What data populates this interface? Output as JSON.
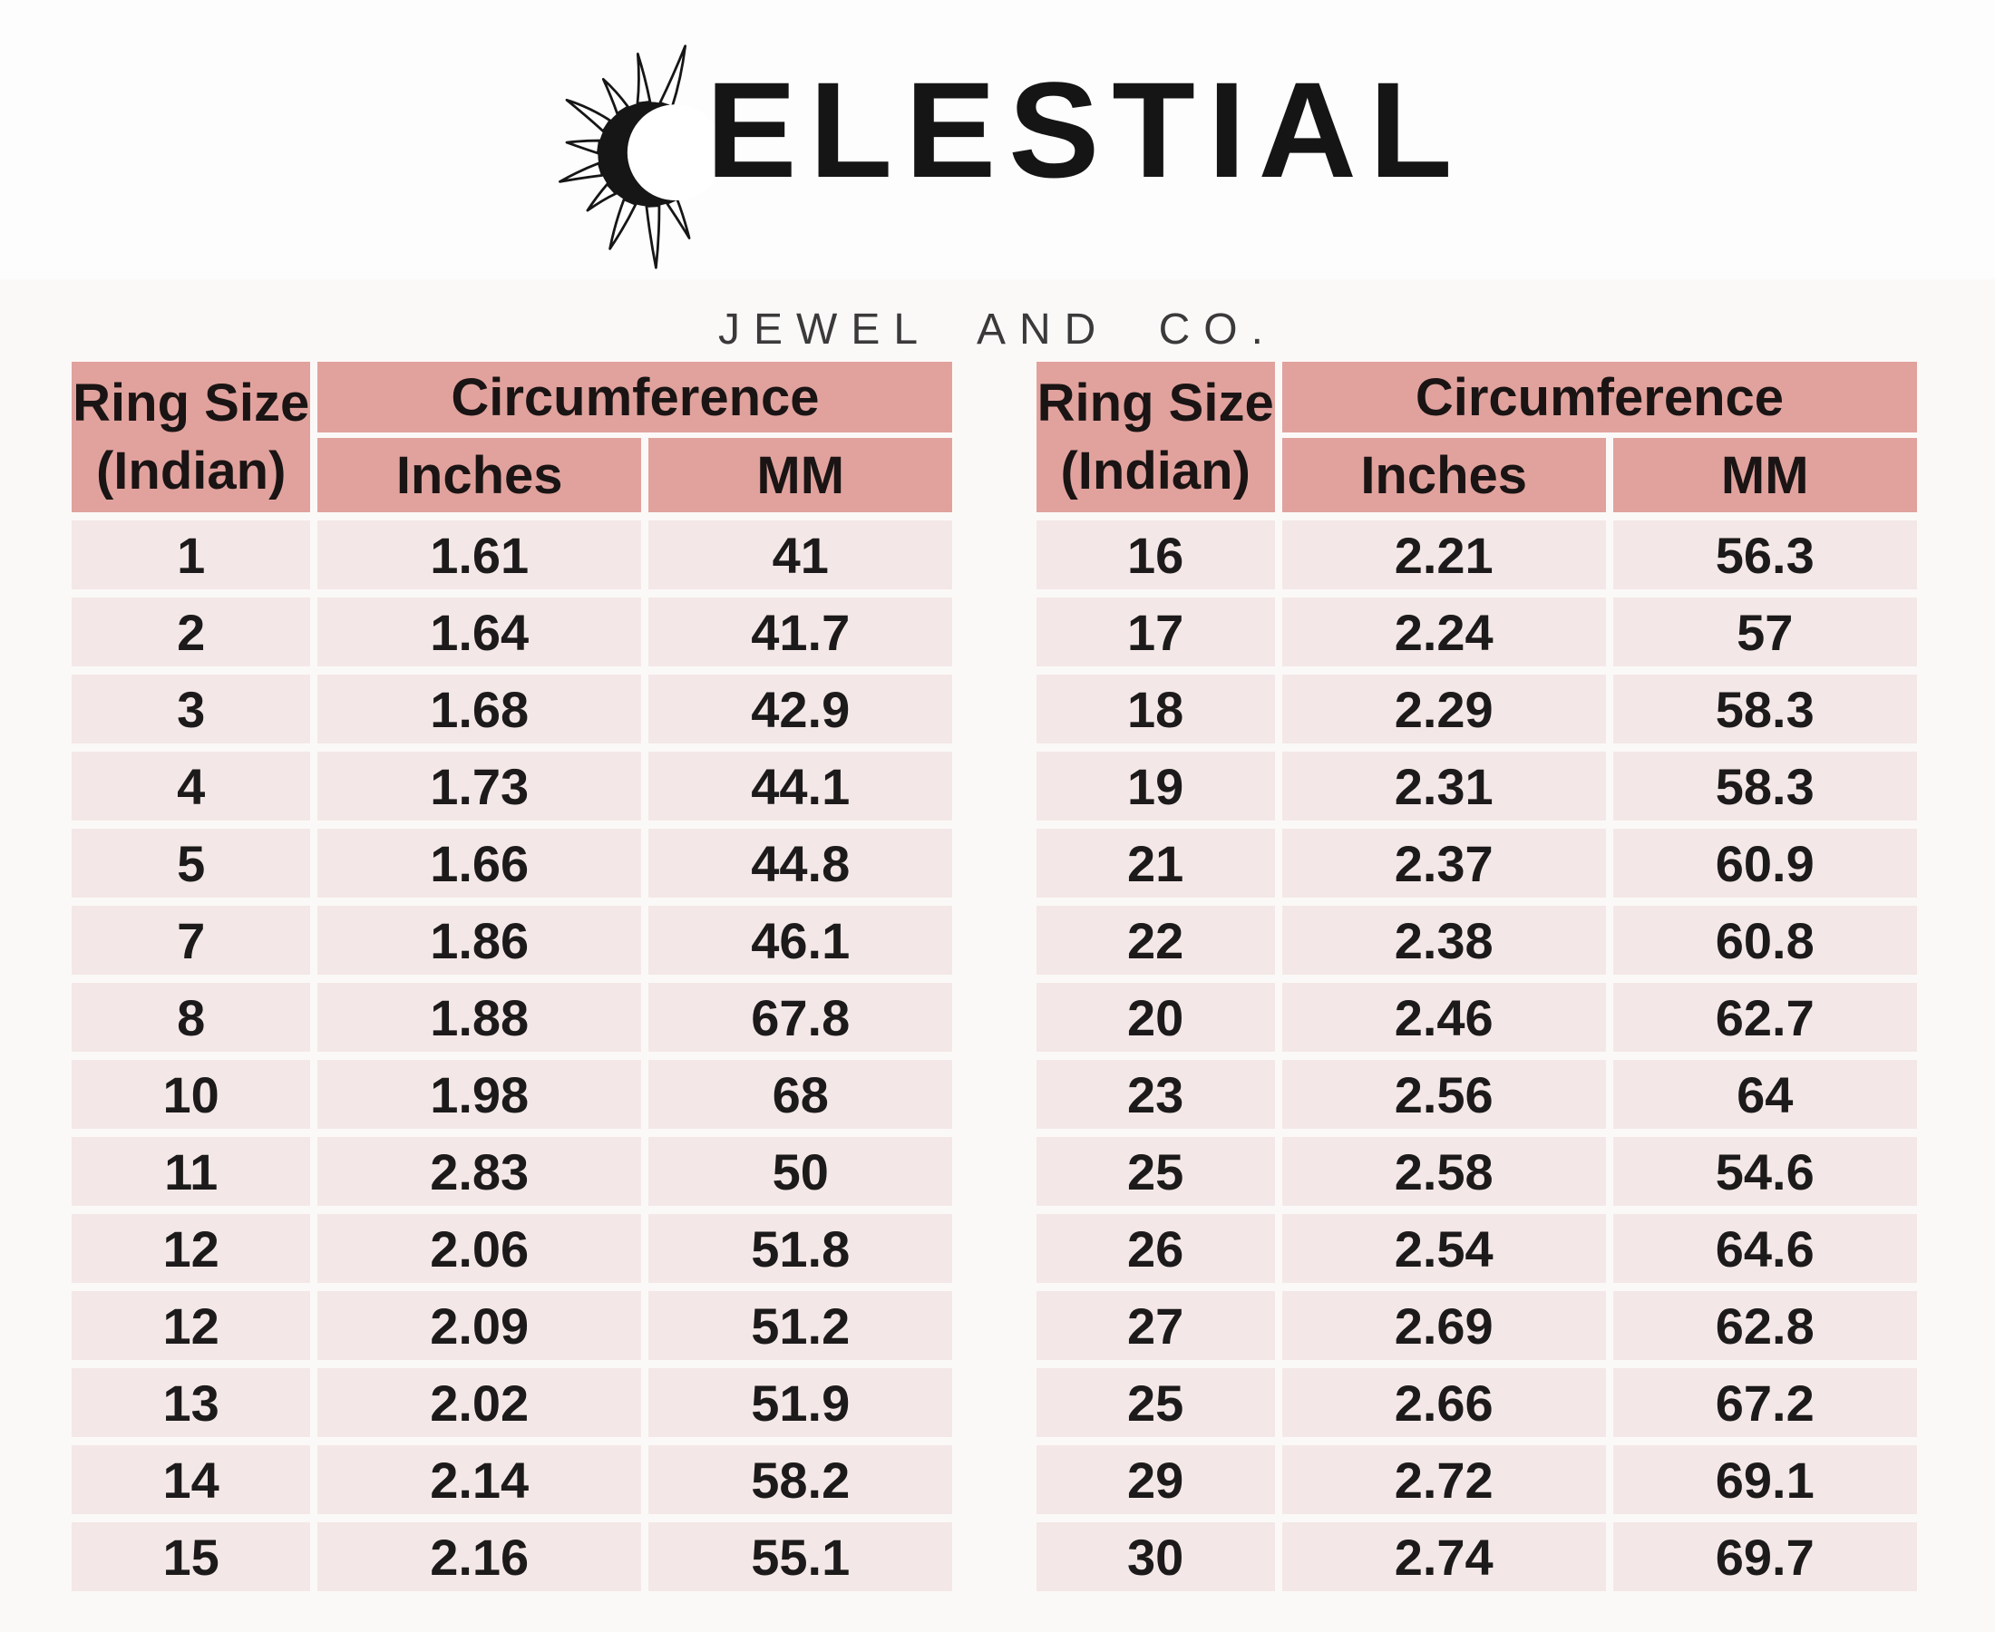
{
  "brand": {
    "full_name": "CELESTIAL",
    "wordmark_after_icon": "ELESTIAL",
    "tagline": "JEWEL AND CO.",
    "icon": "sun-crescent-icon"
  },
  "table_headers": {
    "ring_size_line1": "Ring Size",
    "ring_size_line2": "(Indian)",
    "circumference": "Circumference",
    "inches": "Inches",
    "mm": "MM"
  },
  "chart_data": [
    {
      "type": "table",
      "columns": [
        "Ring Size (Indian)",
        "Inches",
        "MM"
      ],
      "column_group": {
        "label": "Circumference",
        "spans": [
          "Inches",
          "MM"
        ]
      },
      "rows": [
        [
          "1",
          "1.61",
          "41"
        ],
        [
          "2",
          "1.64",
          "41.7"
        ],
        [
          "3",
          "1.68",
          "42.9"
        ],
        [
          "4",
          "1.73",
          "44.1"
        ],
        [
          "5",
          "1.66",
          "44.8"
        ],
        [
          "7",
          "1.86",
          "46.1"
        ],
        [
          "8",
          "1.88",
          "67.8"
        ],
        [
          "10",
          "1.98",
          "68"
        ],
        [
          "11",
          "2.83",
          "50"
        ],
        [
          "12",
          "2.06",
          "51.8"
        ],
        [
          "12",
          "2.09",
          "51.2"
        ],
        [
          "13",
          "2.02",
          "51.9"
        ],
        [
          "14",
          "2.14",
          "58.2"
        ],
        [
          "15",
          "2.16",
          "55.1"
        ]
      ]
    },
    {
      "type": "table",
      "columns": [
        "Ring Size (Indian)",
        "Inches",
        "MM"
      ],
      "column_group": {
        "label": "Circumference",
        "spans": [
          "Inches",
          "MM"
        ]
      },
      "rows": [
        [
          "16",
          "2.21",
          "56.3"
        ],
        [
          "17",
          "2.24",
          "57"
        ],
        [
          "18",
          "2.29",
          "58.3"
        ],
        [
          "19",
          "2.31",
          "58.3"
        ],
        [
          "21",
          "2.37",
          "60.9"
        ],
        [
          "22",
          "2.38",
          "60.8"
        ],
        [
          "20",
          "2.46",
          "62.7"
        ],
        [
          "23",
          "2.56",
          "64"
        ],
        [
          "25",
          "2.58",
          "54.6"
        ],
        [
          "26",
          "2.54",
          "64.6"
        ],
        [
          "27",
          "2.69",
          "62.8"
        ],
        [
          "25",
          "2.66",
          "67.2"
        ],
        [
          "29",
          "2.72",
          "69.1"
        ],
        [
          "30",
          "2.74",
          "69.7"
        ]
      ]
    }
  ],
  "colors": {
    "header_bg": "#e1a29d",
    "row_bg": "#f3e8e7",
    "page_bg": "#fdfdfd",
    "content_band_bg": "#fbf9f8",
    "text": "#1b1b1b",
    "tagline_text": "#3a3a3a"
  }
}
